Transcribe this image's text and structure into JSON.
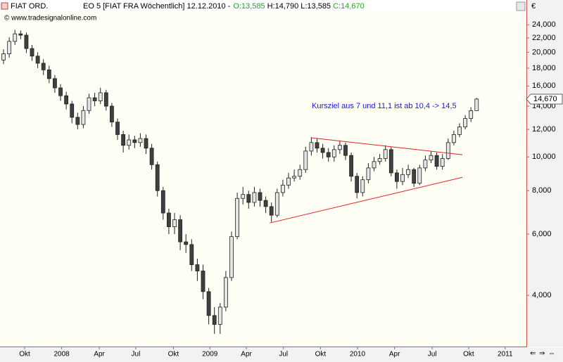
{
  "header": {
    "symbol": "FIAT ORD.",
    "info": "EO 5 [FIAT FRA  Wöchentlich] 12.12.2010 -",
    "open": "O:13,585",
    "high": "H:14,790",
    "low": "L:13,585",
    "close": "C:14,670",
    "source": "© www.tradesignalonline.com"
  },
  "chart_data": {
    "type": "candlestick",
    "currency": "€",
    "annotation": "Kursziel aus 7 und 11,1 ist ab 10,4 -> 14,5",
    "log_scale": true,
    "up_color": "#e6e6e6",
    "down_color": "#404040",
    "trendline_color": "#e02020",
    "annotation_color": "#1a1ad0",
    "xlim": [
      -0.62,
      91.73
    ],
    "ylim": [
      2850,
      26000
    ],
    "xticks": [
      {
        "value": 3.7,
        "label": "Okt"
      },
      {
        "value": 10.2,
        "label": "2008"
      },
      {
        "value": 16.8,
        "label": "Apr"
      },
      {
        "value": 23.2,
        "label": "Jul"
      },
      {
        "value": 29.8,
        "label": "Okt"
      },
      {
        "value": 36.2,
        "label": "2009"
      },
      {
        "value": 42.6,
        "label": "Apr"
      },
      {
        "value": 49.1,
        "label": "Jul"
      },
      {
        "value": 55.6,
        "label": "Okt"
      },
      {
        "value": 62.1,
        "label": "2010"
      },
      {
        "value": 68.6,
        "label": "Apr"
      },
      {
        "value": 75.2,
        "label": "Jul"
      },
      {
        "value": 81.6,
        "label": "Okt"
      },
      {
        "value": 88,
        "label": "2011"
      }
    ],
    "yticks": [
      {
        "value": 4000,
        "label": "4,000"
      },
      {
        "value": 6000,
        "label": "6,000"
      },
      {
        "value": 8000,
        "label": "8,000"
      },
      {
        "value": 10000,
        "label": "10,000"
      },
      {
        "value": 12000,
        "label": "12,000"
      },
      {
        "value": 14000,
        "label": "14,000"
      },
      {
        "value": 16000,
        "label": "16,000"
      },
      {
        "value": 18000,
        "label": "18,000"
      },
      {
        "value": 20000,
        "label": "20,000"
      },
      {
        "value": 22000,
        "label": "22,000"
      },
      {
        "value": 24000,
        "label": "24,000"
      }
    ],
    "last_price": {
      "value": 14670,
      "label": "14,670"
    },
    "open": [
      19000,
      19800,
      21500,
      22600,
      22400,
      20500,
      19500,
      18600,
      17800,
      16800,
      15800,
      15000,
      14200,
      13000,
      12400,
      13600,
      14800,
      14500,
      15300,
      14000,
      12600,
      11600,
      10800,
      11200,
      11000,
      11300,
      10600,
      9500,
      8000,
      6900,
      6300,
      6600,
      5700,
      5600,
      4900,
      4700,
      4100,
      3500,
      3300,
      3700,
      4500,
      5900,
      7600,
      7800,
      7400,
      7900,
      7500,
      7200,
      6800,
      7900,
      8300,
      8700,
      8800,
      9200,
      10400,
      11000,
      10600,
      10300,
      10000,
      10500,
      10800,
      10100,
      8800,
      7900,
      8600,
      9300,
      9700,
      9900,
      10500,
      9000,
      8500,
      8900,
      9200,
      8400,
      9300,
      9800,
      10100,
      9400,
      9900,
      11000,
      11600,
      12200,
      12900,
      13585
    ],
    "high": [
      20400,
      22100,
      23200,
      23100,
      22800,
      21000,
      20000,
      19100,
      18300,
      17200,
      16200,
      15400,
      14500,
      13400,
      14000,
      15200,
      15300,
      15800,
      15600,
      14300,
      12900,
      11900,
      11600,
      11500,
      11700,
      11600,
      10900,
      9700,
      8200,
      7100,
      6900,
      6800,
      6000,
      5800,
      5100,
      4900,
      4200,
      3700,
      3800,
      4700,
      6100,
      7900,
      8200,
      8000,
      8200,
      8100,
      7700,
      7400,
      8100,
      8600,
      9000,
      9200,
      9500,
      10700,
      11400,
      11300,
      10900,
      10600,
      10800,
      11100,
      11000,
      10300,
      9000,
      8800,
      9600,
      10000,
      10200,
      10800,
      10700,
      9200,
      9300,
      9500,
      9300,
      9500,
      10100,
      10400,
      10300,
      10200,
      11300,
      11900,
      12500,
      13200,
      13900,
      14790
    ],
    "low": [
      18500,
      19300,
      21000,
      21800,
      19900,
      18900,
      18000,
      17200,
      16300,
      15300,
      14500,
      13700,
      12500,
      12000,
      12100,
      13300,
      14000,
      14200,
      13600,
      12200,
      11200,
      10300,
      10500,
      10600,
      10700,
      10200,
      9200,
      7700,
      6600,
      6000,
      6000,
      5400,
      5300,
      4700,
      4400,
      3900,
      3300,
      3100,
      3100,
      3600,
      4400,
      5800,
      7300,
      7100,
      7200,
      7200,
      6900,
      6500,
      6700,
      7700,
      8100,
      8500,
      8600,
      9000,
      10100,
      10300,
      9900,
      9700,
      9700,
      10200,
      9800,
      8500,
      7600,
      7700,
      8400,
      9100,
      9500,
      9700,
      8800,
      8100,
      8300,
      8700,
      8200,
      8300,
      9100,
      9600,
      9200,
      9200,
      9800,
      10800,
      11400,
      12000,
      12600,
      13585
    ],
    "close": [
      19800,
      21500,
      22600,
      22400,
      20500,
      19500,
      18600,
      17800,
      16800,
      15800,
      15000,
      14200,
      13000,
      12400,
      13600,
      14800,
      14500,
      15300,
      14000,
      12600,
      11600,
      10800,
      11200,
      11000,
      11300,
      10600,
      9500,
      8000,
      6900,
      6300,
      6600,
      5700,
      5600,
      4900,
      4700,
      4100,
      3500,
      3300,
      3700,
      4500,
      5900,
      7600,
      7800,
      7400,
      7900,
      7500,
      7200,
      6800,
      7900,
      8300,
      8700,
      8800,
      9200,
      10400,
      11000,
      10600,
      10300,
      10000,
      10500,
      10800,
      10100,
      8800,
      7900,
      8600,
      9300,
      9700,
      9900,
      10500,
      9000,
      8500,
      8900,
      9200,
      8400,
      9300,
      9800,
      10100,
      9400,
      9900,
      11000,
      11600,
      12200,
      12900,
      13585,
      14670
    ],
    "trendlines": [
      {
        "x": [
          54.1,
          80.5
        ],
        "y": [
          11350,
          10150
        ]
      },
      {
        "x": [
          46.7,
          80.5
        ],
        "y": [
          6460,
          8740
        ]
      }
    ]
  }
}
